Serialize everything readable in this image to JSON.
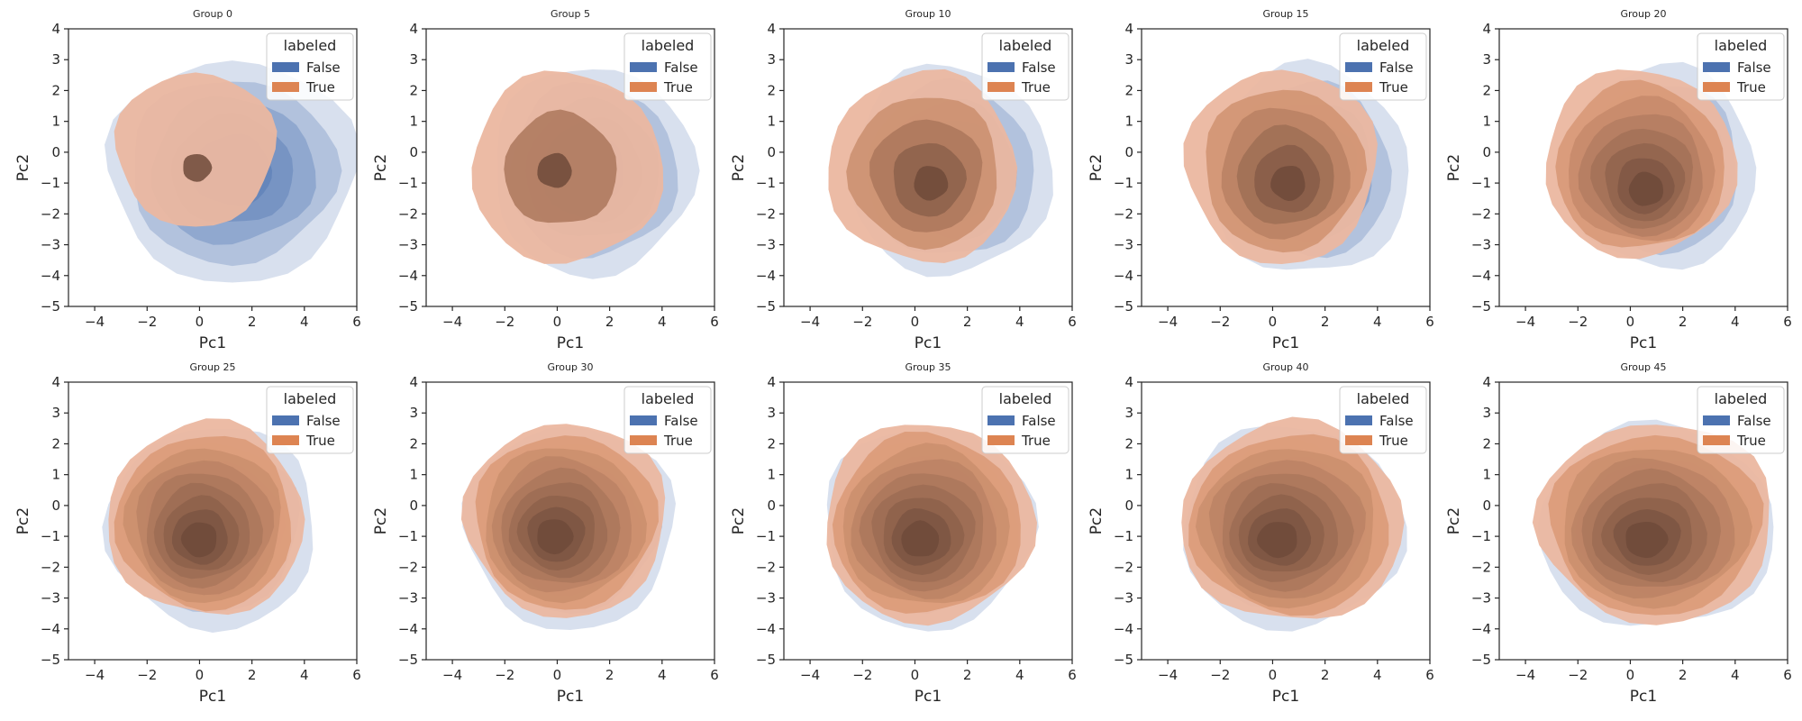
{
  "chart_data": {
    "type": "kde-contour-grid",
    "xlabel": "Pc1",
    "ylabel": "Pc2",
    "xlim": [
      -5,
      6
    ],
    "ylim": [
      -5,
      4
    ],
    "xticks": [
      -4,
      -2,
      0,
      2,
      4,
      6
    ],
    "yticks": [
      -5,
      -4,
      -3,
      -2,
      -1,
      0,
      1,
      2,
      3,
      4
    ],
    "legend": {
      "title": "labeled",
      "placement": "top-right",
      "entries": [
        {
          "label": "False",
          "color": "#4c72b0"
        },
        {
          "label": "True",
          "color": "#dd8452"
        }
      ]
    },
    "colors": {
      "False": "#4c72b0",
      "True": "#dd8452",
      "True_dark": "#6e4a3a"
    },
    "panels": [
      {
        "title": "Group 0",
        "false_extent": {
          "x": [
            -3.5,
            6.0
          ],
          "y": [
            -4.2,
            3.0
          ]
        },
        "true_extent": {
          "x": [
            -3.2,
            2.9
          ],
          "y": [
            -2.4,
            2.6
          ]
        },
        "true_peak": [
          -0.1,
          -0.5
        ],
        "true_levels": 2
      },
      {
        "title": "Group 5",
        "false_extent": {
          "x": [
            -2.5,
            5.2
          ],
          "y": [
            -4.0,
            2.8
          ]
        },
        "true_extent": {
          "x": [
            -3.3,
            4.0
          ],
          "y": [
            -3.6,
            2.6
          ]
        },
        "true_peak": [
          -0.1,
          -0.6
        ],
        "true_levels": 3
      },
      {
        "title": "Group 10",
        "false_extent": {
          "x": [
            -2.5,
            5.2
          ],
          "y": [
            -4.0,
            2.8
          ]
        },
        "true_extent": {
          "x": [
            -3.3,
            3.9
          ],
          "y": [
            -3.6,
            2.6
          ]
        },
        "true_peak": [
          0.6,
          -1.0
        ],
        "true_levels": 5
      },
      {
        "title": "Group 15",
        "false_extent": {
          "x": [
            -2.5,
            5.2
          ],
          "y": [
            -4.0,
            2.8
          ]
        },
        "true_extent": {
          "x": [
            -3.3,
            4.0
          ],
          "y": [
            -3.6,
            2.7
          ]
        },
        "true_peak": [
          0.6,
          -1.0
        ],
        "true_levels": 6
      },
      {
        "title": "Group 20",
        "false_extent": {
          "x": [
            -2.5,
            4.8
          ],
          "y": [
            -3.8,
            2.8
          ]
        },
        "true_extent": {
          "x": [
            -3.3,
            4.0
          ],
          "y": [
            -3.4,
            2.7
          ]
        },
        "true_peak": [
          0.6,
          -1.2
        ],
        "true_levels": 8
      },
      {
        "title": "Group 25",
        "false_extent": {
          "x": [
            -3.5,
            4.5
          ],
          "y": [
            -4.0,
            2.6
          ]
        },
        "true_extent": {
          "x": [
            -3.5,
            4.0
          ],
          "y": [
            -3.6,
            2.7
          ]
        },
        "true_peak": [
          0.0,
          -1.1
        ],
        "true_levels": 9
      },
      {
        "title": "Group 30",
        "false_extent": {
          "x": [
            -3.5,
            4.5
          ],
          "y": [
            -4.0,
            2.6
          ]
        },
        "true_extent": {
          "x": [
            -3.5,
            4.2
          ],
          "y": [
            -3.6,
            2.7
          ]
        },
        "true_peak": [
          -0.1,
          -1.0
        ],
        "true_levels": 9
      },
      {
        "title": "Group 35",
        "false_extent": {
          "x": [
            -3.5,
            4.5
          ],
          "y": [
            -4.0,
            2.6
          ]
        },
        "true_extent": {
          "x": [
            -3.5,
            4.5
          ],
          "y": [
            -3.8,
            2.7
          ]
        },
        "true_peak": [
          0.2,
          -1.1
        ],
        "true_levels": 9
      },
      {
        "title": "Group 40",
        "false_extent": {
          "x": [
            -3.5,
            5.0
          ],
          "y": [
            -4.0,
            2.6
          ]
        },
        "true_extent": {
          "x": [
            -3.5,
            5.0
          ],
          "y": [
            -3.8,
            2.7
          ]
        },
        "true_peak": [
          0.2,
          -1.1
        ],
        "true_levels": 9
      },
      {
        "title": "Group 45",
        "false_extent": {
          "x": [
            -3.5,
            5.5
          ],
          "y": [
            -4.0,
            2.6
          ]
        },
        "true_extent": {
          "x": [
            -3.5,
            5.5
          ],
          "y": [
            -3.8,
            2.7
          ]
        },
        "true_peak": [
          0.6,
          -1.1
        ],
        "true_levels": 9
      }
    ]
  }
}
